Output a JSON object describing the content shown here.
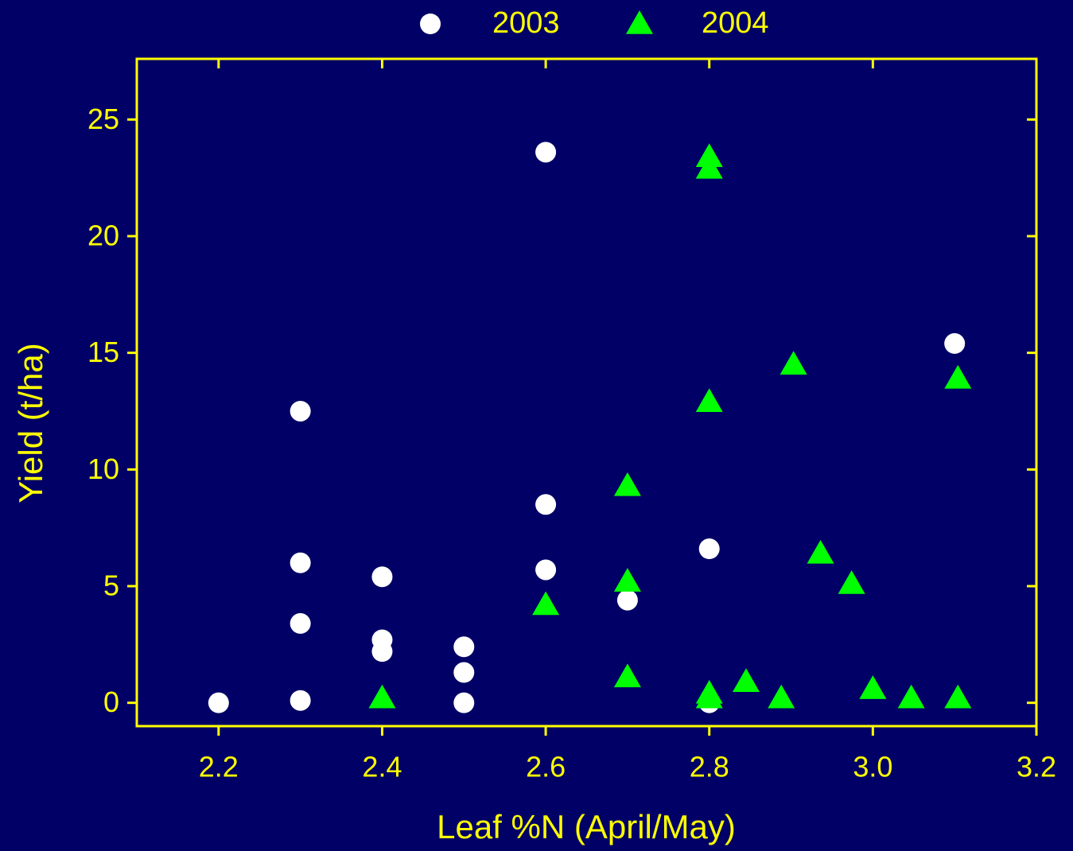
{
  "chart_data": {
    "type": "scatter",
    "x_label": "Leaf %N (April/May)",
    "y_label": "Yield (t/ha)",
    "xlim": [
      2.1,
      3.2
    ],
    "ylim": [
      -1,
      27.6
    ],
    "xticks": [
      2.2,
      2.4,
      2.6,
      2.8,
      {
        "value": 3,
        "label": "3.0"
      },
      3.2
    ],
    "yticks": [
      0,
      5,
      10,
      15,
      20,
      25
    ],
    "axis_color": "#ffff00",
    "background": "#000066",
    "legend": "top",
    "series": [
      {
        "name": "2003",
        "color": "#ffffff",
        "marker": "circle",
        "x": [
          2.2,
          2.3,
          2.3,
          2.3,
          2.3,
          2.4,
          2.4,
          2.4,
          2.5,
          2.5,
          2.5,
          2.6,
          2.6,
          2.6,
          2.7,
          2.8,
          2.8,
          3.1
        ],
        "y": [
          0,
          12.5,
          6,
          3.4,
          0.1,
          5.4,
          2.7,
          2.2,
          2.4,
          1.3,
          0,
          23.6,
          8.5,
          5.7,
          4.4,
          6.6,
          0,
          15.4
        ]
      },
      {
        "name": "2004",
        "color": "#00ff00",
        "marker": "triangle",
        "x": [
          2.4,
          2.6,
          2.7,
          2.7,
          2.7,
          2.8,
          2.8,
          2.8,
          2.8,
          2.8,
          2.845,
          2.888,
          2.903,
          2.936,
          2.974,
          3.0,
          3.047,
          3.104,
          3.104
        ],
        "y": [
          0.2,
          4.2,
          9.3,
          5.2,
          1.1,
          23.4,
          22.9,
          12.9,
          0.4,
          0.2,
          0.9,
          0.2,
          14.5,
          6.4,
          5.1,
          0.6,
          0.2,
          13.9,
          0.2
        ]
      }
    ]
  }
}
